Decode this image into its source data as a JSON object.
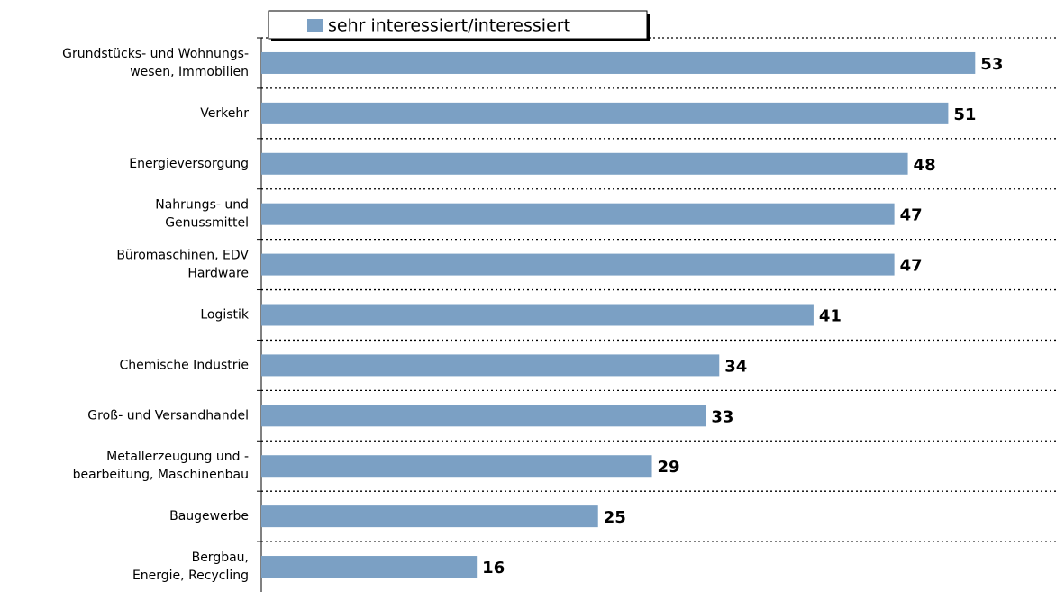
{
  "chart_data": {
    "type": "barh",
    "categories": [
      [
        "Grundstücks- und Wohnungs-",
        "wesen, Immobilien"
      ],
      [
        "Verkehr"
      ],
      [
        "Energieversorgung"
      ],
      [
        "Nahrungs- und",
        "Genussmittel"
      ],
      [
        "Büromaschinen, EDV",
        "Hardware"
      ],
      [
        "Logistik"
      ],
      [
        "Chemische Industrie"
      ],
      [
        "Groß- und Versandhandel"
      ],
      [
        "Metallerzeugung und -",
        "bearbeitung, Maschinenbau"
      ],
      [
        "Baugewerbe"
      ],
      [
        "Bergbau,",
        "Energie, Recycling"
      ]
    ],
    "series": [
      {
        "name": "sehr interessiert/interessiert",
        "color": "#7ba0c4",
        "values": [
          53,
          51,
          48,
          47,
          47,
          41,
          34,
          33,
          29,
          25,
          16
        ]
      }
    ],
    "xlim": [
      0,
      59
    ],
    "grid": true,
    "legend": "top"
  }
}
